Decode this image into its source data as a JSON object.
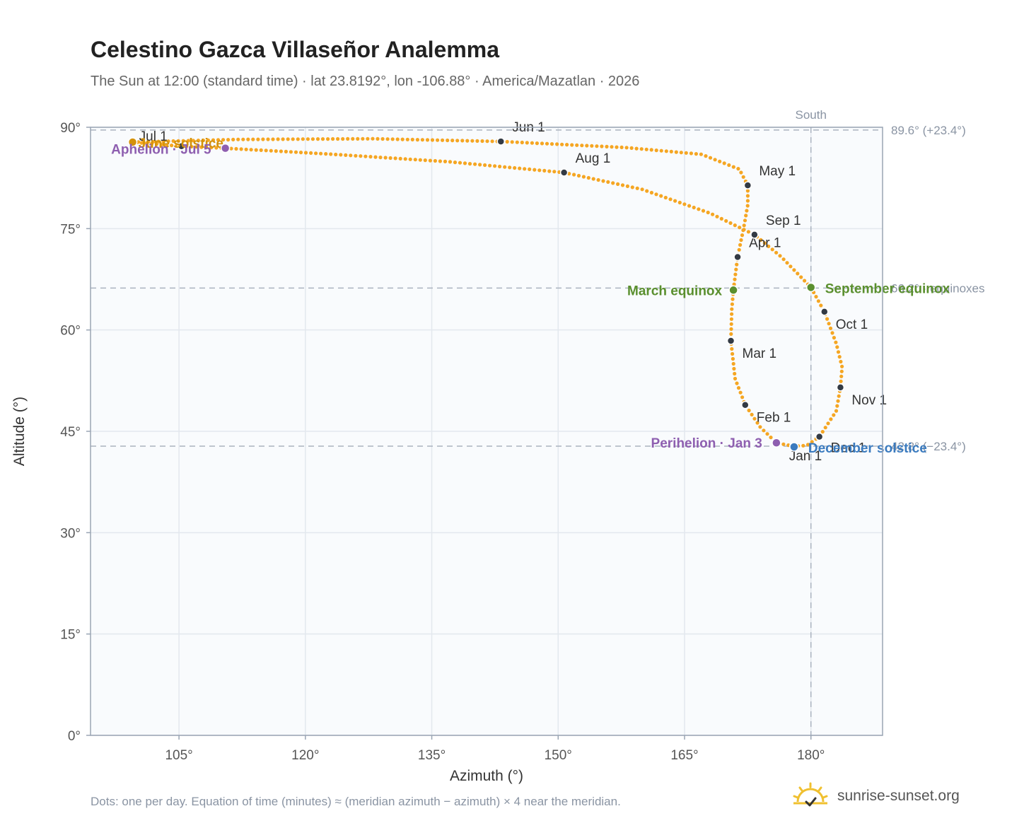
{
  "title": "Celestino Gazca Villaseñor Analemma",
  "subtitle": "The Sun at 12:00 (standard time) · lat 23.8192°, lon -106.88° · America/Mazatlan · 2026",
  "footnote": "Dots: one per day. Equation of time (minutes) ≈ (meridian azimuth − azimuth) × 4 near the meridian.",
  "brand": {
    "name": "sunrise-sunset.org",
    "icon": "sun-checkmark-icon",
    "color": "#f0c030"
  },
  "chart_data": {
    "type": "scatter",
    "xlabel": "Azimuth (°)",
    "ylabel": "Altitude (°)",
    "xlim": [
      94.5,
      188.5
    ],
    "ylim": [
      0,
      90
    ],
    "xticks": [
      105,
      120,
      135,
      150,
      165,
      180
    ],
    "xtick_labels": [
      "105°",
      "120°",
      "135°",
      "150°",
      "165°",
      "180°"
    ],
    "yticks": [
      0,
      15,
      30,
      45,
      60,
      75,
      90
    ],
    "ytick_labels": [
      "0°",
      "15°",
      "30°",
      "45°",
      "60°",
      "75°",
      "90°"
    ],
    "grid": true,
    "meridian": {
      "azimuth": 180,
      "label": "South"
    },
    "reference_lines": [
      {
        "altitude": 89.6,
        "label": "89.6° (+23.4°)"
      },
      {
        "altitude": 66.2,
        "label": "66.2° · equinoxes"
      },
      {
        "altitude": 42.8,
        "label": "42.8° (−23.4°)"
      }
    ],
    "colors": {
      "path": "#f5a623",
      "month": "#333a44",
      "equinox": "#5a8f2e",
      "june": "#d4920a",
      "december": "#3b7bbf",
      "apsis": "#8e5fb0"
    },
    "month_markers": [
      {
        "label": "Jan 1",
        "azimuth": 177.9,
        "altitude": 42.8
      },
      {
        "label": "Feb 1",
        "azimuth": 172.2,
        "altitude": 48.9
      },
      {
        "label": "Mar 1",
        "azimuth": 170.5,
        "altitude": 58.4
      },
      {
        "label": "Apr 1",
        "azimuth": 171.3,
        "altitude": 70.8
      },
      {
        "label": "May 1",
        "azimuth": 172.5,
        "altitude": 81.4
      },
      {
        "label": "Jun 1",
        "azimuth": 143.2,
        "altitude": 87.9
      },
      {
        "label": "Jul 1",
        "azimuth": 105.3,
        "altitude": 87.2
      },
      {
        "label": "Aug 1",
        "azimuth": 150.7,
        "altitude": 83.3
      },
      {
        "label": "Sep 1",
        "azimuth": 173.3,
        "altitude": 74.1
      },
      {
        "label": "Oct 1",
        "azimuth": 181.6,
        "altitude": 62.7
      },
      {
        "label": "Nov 1",
        "azimuth": 183.5,
        "altitude": 51.5
      },
      {
        "label": "Dec 1",
        "azimuth": 181.0,
        "altitude": 44.2
      }
    ],
    "events": [
      {
        "label": "March equinox",
        "azimuth": 170.8,
        "altitude": 65.9,
        "kind": "equinox"
      },
      {
        "label": "September equinox",
        "azimuth": 180.0,
        "altitude": 66.3,
        "kind": "equinox"
      },
      {
        "label": "June solstice",
        "azimuth": 99.5,
        "altitude": 87.8,
        "kind": "june"
      },
      {
        "label": "December solstice",
        "azimuth": 178.0,
        "altitude": 42.7,
        "kind": "december"
      },
      {
        "label": "Perihelion · Jan 3",
        "azimuth": 175.9,
        "altitude": 43.3,
        "kind": "apsis"
      },
      {
        "label": "Aphelion · Jul 5",
        "azimuth": 110.5,
        "altitude": 86.9,
        "kind": "apsis"
      }
    ],
    "path": [
      [
        177.9,
        42.8
      ],
      [
        175.9,
        43.3
      ],
      [
        174.0,
        45.6
      ],
      [
        172.2,
        48.9
      ],
      [
        171.0,
        52.8
      ],
      [
        170.5,
        58.4
      ],
      [
        170.6,
        63.0
      ],
      [
        170.8,
        65.9
      ],
      [
        171.3,
        70.8
      ],
      [
        172.0,
        75.0
      ],
      [
        172.5,
        78.5
      ],
      [
        172.5,
        81.4
      ],
      [
        171.5,
        83.8
      ],
      [
        167.0,
        86.0
      ],
      [
        158.0,
        87.0
      ],
      [
        143.2,
        87.9
      ],
      [
        128.0,
        88.3
      ],
      [
        112.0,
        88.2
      ],
      [
        99.5,
        87.8
      ],
      [
        105.3,
        87.2
      ],
      [
        110.5,
        86.9
      ],
      [
        122.0,
        86.1
      ],
      [
        137.0,
        84.9
      ],
      [
        150.7,
        83.3
      ],
      [
        160.0,
        80.8
      ],
      [
        168.0,
        77.3
      ],
      [
        173.3,
        74.1
      ],
      [
        176.5,
        70.8
      ],
      [
        180.0,
        66.3
      ],
      [
        181.6,
        62.7
      ],
      [
        183.0,
        58.0
      ],
      [
        183.7,
        54.5
      ],
      [
        183.5,
        51.5
      ],
      [
        183.0,
        48.0
      ],
      [
        181.0,
        44.2
      ],
      [
        179.5,
        42.9
      ],
      [
        177.9,
        42.8
      ]
    ]
  }
}
